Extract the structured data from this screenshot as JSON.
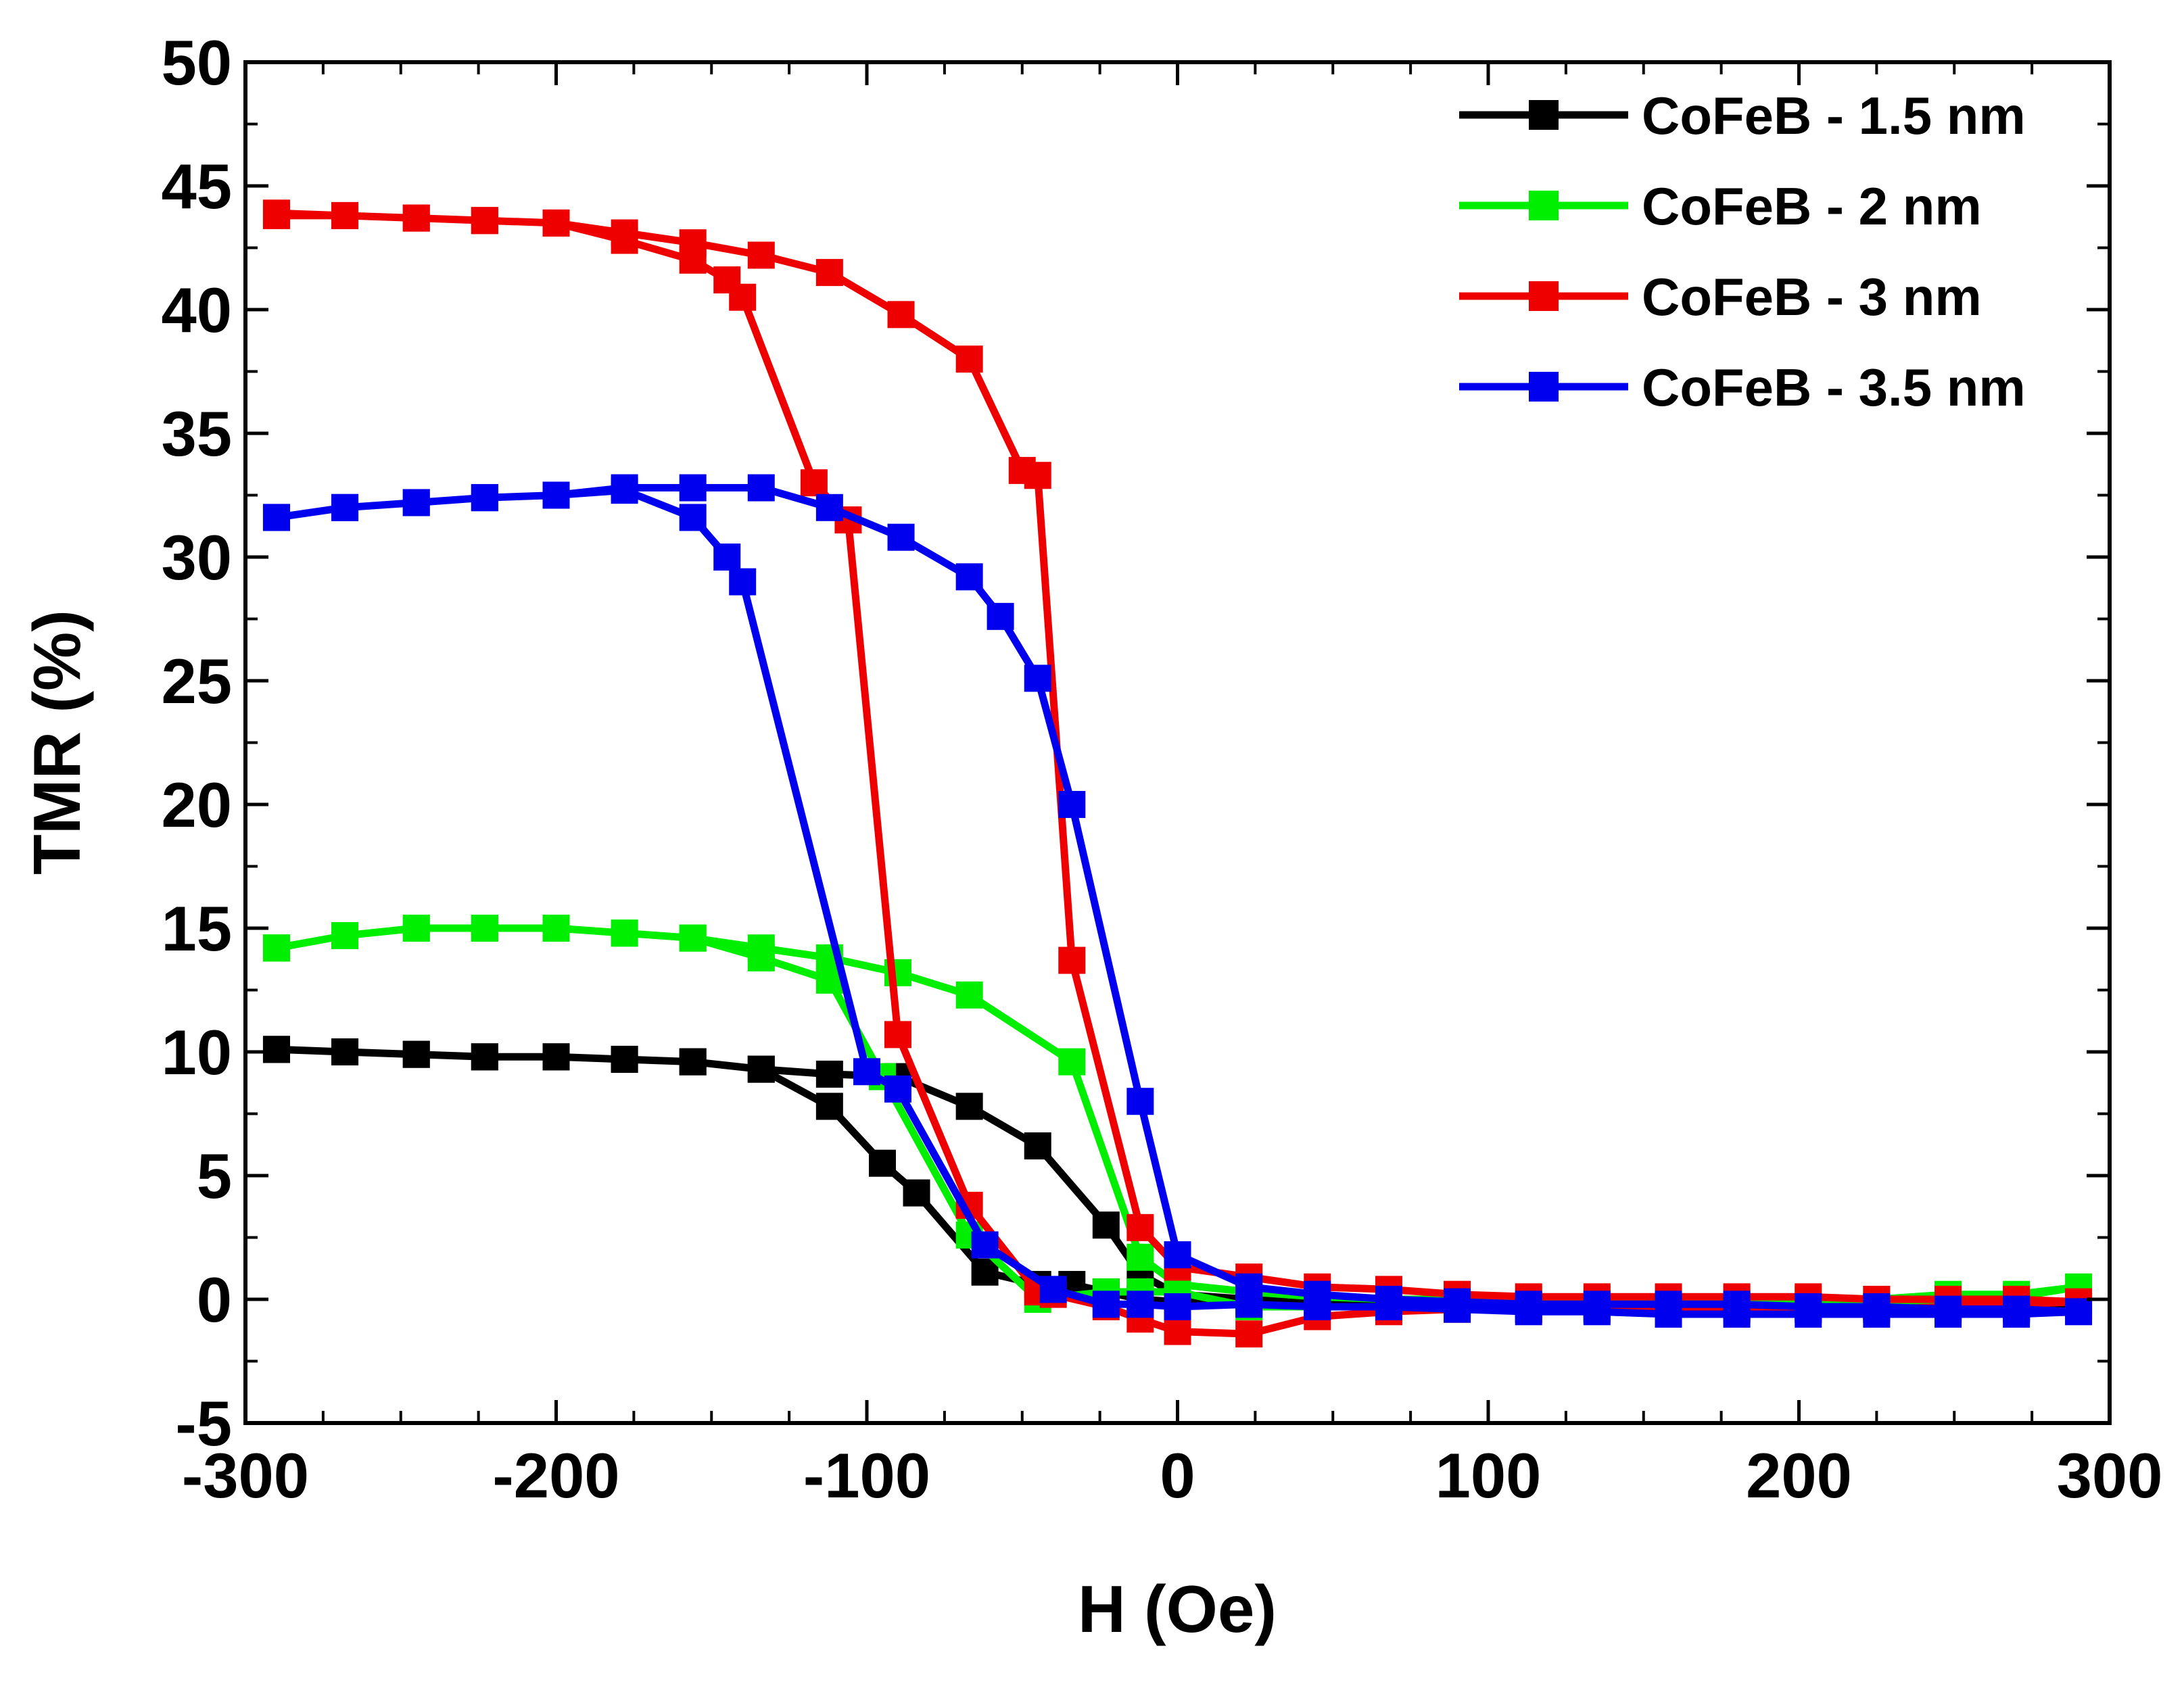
{
  "chart_data": {
    "type": "line",
    "title": "",
    "xlabel": "H (Oe)",
    "ylabel": "TMR (%)",
    "xlim": [
      -300,
      300
    ],
    "ylim": [
      -5,
      50
    ],
    "xticks": [
      -300,
      -200,
      -100,
      0,
      100,
      200,
      300
    ],
    "yticks": [
      -5,
      0,
      5,
      10,
      15,
      20,
      25,
      30,
      35,
      40,
      45,
      50
    ],
    "xtick_labels": [
      "-300",
      "-200",
      "-100",
      "0",
      "100",
      "200",
      "300"
    ],
    "ytick_labels": [
      "-5",
      "0",
      "5",
      "10",
      "15",
      "20",
      "25",
      "30",
      "35",
      "40",
      "45",
      "50"
    ],
    "grid": false,
    "legend_position": "top-right",
    "series": [
      {
        "name": "CoFeB - 1.5 nm",
        "legend_label": "CoFeB - 1.5 nm",
        "color": "#000000",
        "x": [
          -290,
          -268,
          -245,
          -223,
          -200,
          -178,
          -156,
          -134,
          -112,
          -90,
          -67,
          -45,
          -23,
          -12,
          0,
          23,
          45,
          68,
          90,
          113,
          135,
          158,
          180,
          203,
          225,
          248,
          270,
          290,
          270,
          248,
          225,
          203,
          180,
          158,
          135,
          113,
          90,
          68,
          45,
          23,
          0,
          -12,
          -23,
          -34,
          -45,
          -62,
          -84,
          -95,
          -112,
          -134,
          -156,
          -178,
          -200,
          -223,
          -245,
          -268,
          -290
        ],
        "y": [
          10.1,
          10.0,
          9.9,
          9.8,
          9.8,
          9.7,
          9.6,
          9.3,
          9.1,
          9.0,
          7.8,
          6.2,
          3.0,
          1.0,
          0.2,
          0.0,
          -0.1,
          -0.2,
          -0.2,
          -0.3,
          -0.3,
          -0.3,
          -0.3,
          -0.3,
          -0.3,
          -0.3,
          -0.3,
          -0.3,
          -0.4,
          -0.4,
          -0.4,
          -0.4,
          -0.4,
          -0.4,
          -0.4,
          -0.4,
          -0.4,
          -0.3,
          -0.3,
          -0.2,
          -0.1,
          0.0,
          0.3,
          0.6,
          0.6,
          1.1,
          4.3,
          5.5,
          7.8,
          9.3,
          9.6,
          9.7,
          9.8,
          9.8,
          9.9,
          10.0,
          10.1
        ]
      },
      {
        "name": "CoFeB - 2 nm",
        "legend_label": "CoFeB -  2 nm",
        "color": "#00ee00",
        "x": [
          -290,
          -268,
          -245,
          -223,
          -200,
          -178,
          -156,
          -134,
          -112,
          -90,
          -67,
          -34,
          -12,
          0,
          23,
          45,
          68,
          90,
          113,
          135,
          158,
          180,
          203,
          225,
          248,
          270,
          290,
          270,
          248,
          225,
          203,
          180,
          158,
          135,
          113,
          90,
          68,
          45,
          23,
          0,
          -12,
          -23,
          -45,
          -67,
          -95,
          -112,
          -134,
          -156,
          -178,
          -200,
          -223,
          -245,
          -268,
          -290
        ],
        "y": [
          14.2,
          14.7,
          15.0,
          15.0,
          15.0,
          14.8,
          14.6,
          14.2,
          13.8,
          13.2,
          12.3,
          9.6,
          1.7,
          0.6,
          0.3,
          0.1,
          0.0,
          0.0,
          0.0,
          0.0,
          0.0,
          0.0,
          0.0,
          0.0,
          0.2,
          0.2,
          0.5,
          0.1,
          -0.1,
          -0.3,
          -0.3,
          -0.3,
          -0.4,
          -0.4,
          -0.3,
          -0.3,
          -0.3,
          -0.3,
          -0.3,
          0.3,
          0.3,
          0.3,
          0.0,
          2.6,
          9.0,
          12.9,
          13.8,
          14.6,
          14.8,
          15.0,
          15.0,
          15.0,
          14.7,
          14.2
        ]
      },
      {
        "name": "CoFeB - 3 nm",
        "legend_label": "CoFeB -  3 nm",
        "color": "#ee0000",
        "x": [
          -290,
          -268,
          -245,
          -223,
          -200,
          -178,
          -156,
          -134,
          -112,
          -89,
          -67,
          -50,
          -45,
          -34,
          -12,
          0,
          23,
          45,
          68,
          90,
          113,
          135,
          158,
          180,
          203,
          225,
          248,
          270,
          290,
          270,
          248,
          225,
          203,
          180,
          158,
          135,
          113,
          90,
          68,
          45,
          23,
          0,
          -12,
          -23,
          -40,
          -45,
          -67,
          -90,
          -106,
          -117,
          -140,
          -145,
          -156,
          -178,
          -200,
          -223,
          -245,
          -268,
          -290
        ],
        "y": [
          43.8,
          43.8,
          43.7,
          43.6,
          43.5,
          43.1,
          42.7,
          42.2,
          41.5,
          39.8,
          38.0,
          33.5,
          33.3,
          13.7,
          2.9,
          1.3,
          0.9,
          0.5,
          0.4,
          0.2,
          0.1,
          0.1,
          0.1,
          0.1,
          0.1,
          0.0,
          0.0,
          0.0,
          -0.1,
          -0.2,
          -0.3,
          -0.4,
          -0.4,
          -0.4,
          -0.5,
          -0.4,
          -0.4,
          -0.4,
          -0.5,
          -0.7,
          -1.4,
          -1.3,
          -0.8,
          -0.3,
          0.2,
          0.3,
          3.8,
          10.7,
          31.5,
          33.0,
          40.5,
          41.2,
          42.0,
          42.8,
          43.5,
          43.6,
          43.7,
          43.8,
          43.9
        ]
      },
      {
        "name": "CoFeB - 3.5 nm",
        "legend_label": "CoFeB -  3.5 nm",
        "color": "#0000ee",
        "x": [
          -290,
          -268,
          -245,
          -223,
          -200,
          -178,
          -156,
          -134,
          -112,
          -89,
          -67,
          -57,
          -45,
          -34,
          -12,
          0,
          23,
          45,
          68,
          90,
          113,
          135,
          158,
          180,
          203,
          225,
          248,
          270,
          290,
          270,
          248,
          225,
          203,
          180,
          158,
          135,
          113,
          90,
          68,
          45,
          23,
          0,
          -12,
          -23,
          -40,
          -62,
          -90,
          -100,
          -140,
          -145,
          -156,
          -178,
          -200,
          -223,
          -245,
          -268,
          -290
        ],
        "y": [
          31.6,
          32.0,
          32.2,
          32.4,
          32.5,
          32.8,
          32.8,
          32.8,
          32.0,
          30.8,
          29.2,
          27.6,
          25.1,
          20.0,
          8.0,
          1.8,
          0.5,
          0.2,
          0.0,
          -0.1,
          -0.2,
          -0.2,
          -0.2,
          -0.2,
          -0.3,
          -0.3,
          -0.4,
          -0.4,
          -0.5,
          -0.6,
          -0.6,
          -0.6,
          -0.6,
          -0.6,
          -0.6,
          -0.5,
          -0.5,
          -0.4,
          -0.3,
          -0.3,
          -0.2,
          -0.3,
          -0.2,
          -0.2,
          0.4,
          2.2,
          8.5,
          9.2,
          29.0,
          30.0,
          31.6,
          32.7,
          32.5,
          32.4,
          32.2,
          32.0,
          31.6
        ]
      }
    ]
  }
}
